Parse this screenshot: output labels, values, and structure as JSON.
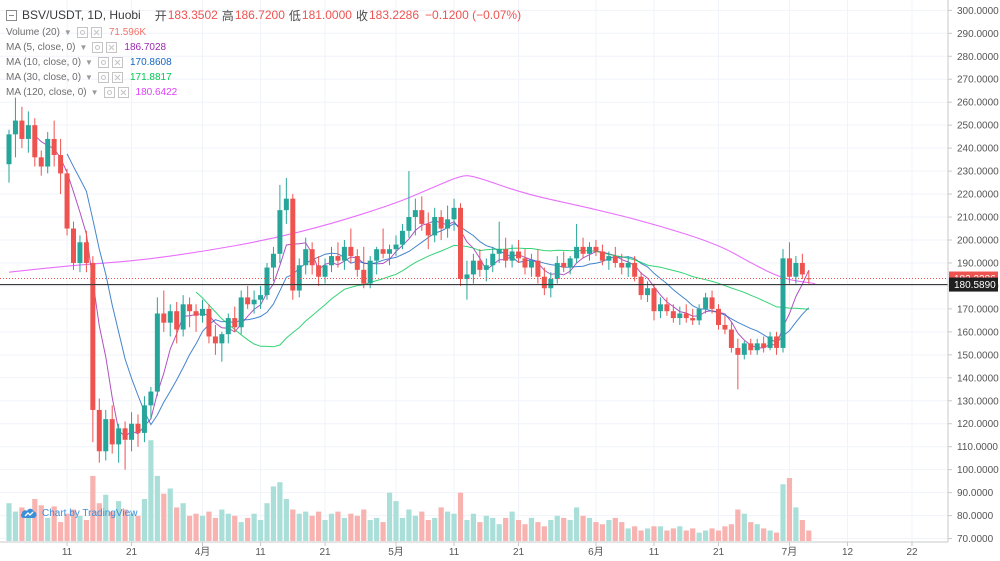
{
  "header": {
    "symbol": "BSV/USDT, 1D, Huobi",
    "open_label": "开",
    "open": "183.3502",
    "high_label": "高",
    "high": "186.7200",
    "low_label": "低",
    "low": "181.0000",
    "close_label": "收",
    "close": "183.2286",
    "change": "−0.1200 (−0.07%)"
  },
  "indicators": [
    {
      "name": "Volume (20)",
      "value": "71.596K",
      "color": "#f4726a"
    },
    {
      "name": "MA (5, close, 0)",
      "value": "186.7028",
      "color": "#9c27b0"
    },
    {
      "name": "MA (10, close, 0)",
      "value": "170.8608",
      "color": "#1565c0"
    },
    {
      "name": "MA (30, close, 0)",
      "value": "171.8817",
      "color": "#00c853"
    },
    {
      "name": "MA (120, close, 0)",
      "value": "180.6422",
      "color": "#e040fb"
    }
  ],
  "watermark": "Chart by TradingView",
  "chart_data": {
    "type": "candlestick",
    "price_axis": {
      "ticks": [
        300,
        290,
        280,
        270,
        260,
        250,
        240,
        230,
        220,
        210,
        200,
        190,
        180,
        170,
        160,
        150,
        140,
        130,
        120,
        110,
        100,
        90,
        80,
        70
      ],
      "tick_labels": [
        "300.0000",
        "290.0000",
        "280.0000",
        "270.0000",
        "260.0000",
        "250.0000",
        "240.0000",
        "230.0000",
        "220.0000",
        "210.0000",
        "200.0000",
        "190.0000",
        "180.0000",
        "170.0000",
        "160.0000",
        "150.0000",
        "140.0000",
        "130.0000",
        "120.0000",
        "110.0000",
        "100.0000",
        "90.0000",
        "80.0000",
        "70.0000"
      ],
      "range": [
        68.5,
        304.5
      ],
      "last_price_label": "183.2286",
      "reference_line_label": "180.5890"
    },
    "time_axis": {
      "labels": [
        "11",
        "21",
        "4月",
        "11",
        "21",
        "5月",
        "11",
        "21",
        "6月",
        "11",
        "21",
        "7月",
        "12",
        "22"
      ],
      "label_days": [
        9,
        19,
        30,
        39,
        49,
        60,
        69,
        79,
        91,
        100,
        110,
        121,
        130,
        140
      ]
    },
    "colors": {
      "up": "#26a69a",
      "down": "#ef5350",
      "vol_up": "#a9dfd8",
      "vol_down": "#f8b3b0"
    },
    "ohlc": [
      [
        233.0,
        248.0,
        225.0,
        246.0
      ],
      [
        246.0,
        262.0,
        236.0,
        252.0
      ],
      [
        252.0,
        258.0,
        240.0,
        244.0
      ],
      [
        244.0,
        256.0,
        238.0,
        250.0
      ],
      [
        250.0,
        253.0,
        232.0,
        236.0
      ],
      [
        236.0,
        239.0,
        228.0,
        232.0
      ],
      [
        232.0,
        247.0,
        229.0,
        244.0
      ],
      [
        244.0,
        252.0,
        232.0,
        237.0
      ],
      [
        237.0,
        244.0,
        220.0,
        229.0
      ],
      [
        229.0,
        231.0,
        202.0,
        205.0
      ],
      [
        205.0,
        208.0,
        187.0,
        190.0
      ],
      [
        190.0,
        202.0,
        186.0,
        199.0
      ],
      [
        199.0,
        204.0,
        186.0,
        190.0
      ],
      [
        190.0,
        193.0,
        112.0,
        126.0
      ],
      [
        126.0,
        131.0,
        103.0,
        108.0
      ],
      [
        108.0,
        126.0,
        104.0,
        122.0
      ],
      [
        122.0,
        128.0,
        107.0,
        111.0
      ],
      [
        111.0,
        120.0,
        103.0,
        118.0
      ],
      [
        118.0,
        121.0,
        100.0,
        113.0
      ],
      [
        113.0,
        125.0,
        108.0,
        120.0
      ],
      [
        120.0,
        124.0,
        110.0,
        116.0
      ],
      [
        116.0,
        132.0,
        112.0,
        128.0
      ],
      [
        128.0,
        136.0,
        122.0,
        134.0
      ],
      [
        134.0,
        175.0,
        132.0,
        168.0
      ],
      [
        168.0,
        178.0,
        160.0,
        164.0
      ],
      [
        164.0,
        172.0,
        158.0,
        169.0
      ],
      [
        169.0,
        173.0,
        155.0,
        161.0
      ],
      [
        161.0,
        176.0,
        158.0,
        172.0
      ],
      [
        172.0,
        175.0,
        162.0,
        169.0
      ],
      [
        169.0,
        172.0,
        160.0,
        167.0
      ],
      [
        167.0,
        174.0,
        164.0,
        170.0
      ],
      [
        170.0,
        172.0,
        155.0,
        158.0
      ],
      [
        158.0,
        163.0,
        150.0,
        155.0
      ],
      [
        155.0,
        160.0,
        147.0,
        159.0
      ],
      [
        159.0,
        168.0,
        155.0,
        166.0
      ],
      [
        166.0,
        171.0,
        160.0,
        162.0
      ],
      [
        162.0,
        178.0,
        159.0,
        175.0
      ],
      [
        175.0,
        180.0,
        170.0,
        172.0
      ],
      [
        172.0,
        178.0,
        168.0,
        174.0
      ],
      [
        174.0,
        180.0,
        170.0,
        176.0
      ],
      [
        176.0,
        190.0,
        174.0,
        188.0
      ],
      [
        188.0,
        197.0,
        182.0,
        194.0
      ],
      [
        194.0,
        224.0,
        190.0,
        213.0
      ],
      [
        213.0,
        227.0,
        207.0,
        218.0
      ],
      [
        218.0,
        220.0,
        174.0,
        178.0
      ],
      [
        178.0,
        192.0,
        175.0,
        189.0
      ],
      [
        189.0,
        201.0,
        185.0,
        196.0
      ],
      [
        196.0,
        199.0,
        185.0,
        189.0
      ],
      [
        189.0,
        193.0,
        180.0,
        184.0
      ],
      [
        184.0,
        192.0,
        181.0,
        189.0
      ],
      [
        189.0,
        197.0,
        186.0,
        193.0
      ],
      [
        193.0,
        199.0,
        188.0,
        191.0
      ],
      [
        191.0,
        200.0,
        187.0,
        197.0
      ],
      [
        197.0,
        205.0,
        190.0,
        193.0
      ],
      [
        193.0,
        196.0,
        184.0,
        187.0
      ],
      [
        187.0,
        197.0,
        179.0,
        181.0
      ],
      [
        181.0,
        193.0,
        179.0,
        191.0
      ],
      [
        191.0,
        197.0,
        185.0,
        196.0
      ],
      [
        196.0,
        205.0,
        192.0,
        194.0
      ],
      [
        194.0,
        198.0,
        189.0,
        196.0
      ],
      [
        196.0,
        202.0,
        193.0,
        198.0
      ],
      [
        198.0,
        207.0,
        196.0,
        204.0
      ],
      [
        204.0,
        230.0,
        201.0,
        210.0
      ],
      [
        210.0,
        218.0,
        202.0,
        213.0
      ],
      [
        213.0,
        219.0,
        204.0,
        207.0
      ],
      [
        207.0,
        212.0,
        196.0,
        202.0
      ],
      [
        202.0,
        214.0,
        199.0,
        210.0
      ],
      [
        210.0,
        213.0,
        200.0,
        205.0
      ],
      [
        205.0,
        215.0,
        201.0,
        209.0
      ],
      [
        209.0,
        218.0,
        204.0,
        214.0
      ],
      [
        214.0,
        216.0,
        180.0,
        183.0
      ],
      [
        183.0,
        191.0,
        174.0,
        185.0
      ],
      [
        185.0,
        194.0,
        181.0,
        191.0
      ],
      [
        191.0,
        196.0,
        184.0,
        187.0
      ],
      [
        187.0,
        192.0,
        182.0,
        189.0
      ],
      [
        189.0,
        197.0,
        186.0,
        194.0
      ],
      [
        194.0,
        208.0,
        190.0,
        196.0
      ],
      [
        196.0,
        201.0,
        188.0,
        191.0
      ],
      [
        191.0,
        198.0,
        188.0,
        195.0
      ],
      [
        195.0,
        200.0,
        190.0,
        192.0
      ],
      [
        192.0,
        196.0,
        185.0,
        188.0
      ],
      [
        188.0,
        194.0,
        184.0,
        191.0
      ],
      [
        191.0,
        196.0,
        181.0,
        184.0
      ],
      [
        184.0,
        188.0,
        176.0,
        179.0
      ],
      [
        179.0,
        186.0,
        175.0,
        183.0
      ],
      [
        183.0,
        193.0,
        181.0,
        190.0
      ],
      [
        190.0,
        195.0,
        186.0,
        188.0
      ],
      [
        188.0,
        193.0,
        185.0,
        192.0
      ],
      [
        192.0,
        207.0,
        190.0,
        197.0
      ],
      [
        197.0,
        201.0,
        192.0,
        194.0
      ],
      [
        194.0,
        199.0,
        191.0,
        197.0
      ],
      [
        197.0,
        200.0,
        193.0,
        195.0
      ],
      [
        195.0,
        198.0,
        189.0,
        191.0
      ],
      [
        191.0,
        195.0,
        187.0,
        193.0
      ],
      [
        193.0,
        197.0,
        188.0,
        190.0
      ],
      [
        190.0,
        194.0,
        185.0,
        188.0
      ],
      [
        188.0,
        193.0,
        184.0,
        190.0
      ],
      [
        190.0,
        193.0,
        182.0,
        184.0
      ],
      [
        184.0,
        186.0,
        174.0,
        176.0
      ],
      [
        176.0,
        182.0,
        173.0,
        179.0
      ],
      [
        179.0,
        181.0,
        165.0,
        169.0
      ],
      [
        169.0,
        175.0,
        166.0,
        172.0
      ],
      [
        172.0,
        175.0,
        167.0,
        169.0
      ],
      [
        169.0,
        172.0,
        164.0,
        166.0
      ],
      [
        166.0,
        171.0,
        163.0,
        168.0
      ],
      [
        168.0,
        172.0,
        164.0,
        166.0
      ],
      [
        166.0,
        170.0,
        163.0,
        165.0
      ],
      [
        165.0,
        172.0,
        163.0,
        170.0
      ],
      [
        170.0,
        177.0,
        168.0,
        175.0
      ],
      [
        175.0,
        178.0,
        168.0,
        170.0
      ],
      [
        170.0,
        172.0,
        161.0,
        163.0
      ],
      [
        163.0,
        167.0,
        159.0,
        161.0
      ],
      [
        161.0,
        164.0,
        151.0,
        153.0
      ],
      [
        153.0,
        157.0,
        135.0,
        150.0
      ],
      [
        150.0,
        156.0,
        148.0,
        155.0
      ],
      [
        155.0,
        157.0,
        150.0,
        152.0
      ],
      [
        152.0,
        157.0,
        150.0,
        155.0
      ],
      [
        155.0,
        158.0,
        151.0,
        153.0
      ],
      [
        153.0,
        160.0,
        152.0,
        158.0
      ],
      [
        158.0,
        160.0,
        150.0,
        153.0
      ],
      [
        153.0,
        196.0,
        151.0,
        192.0
      ],
      [
        192.0,
        199.0,
        181.0,
        184.0
      ],
      [
        184.0,
        193.0,
        181.0,
        190.0
      ],
      [
        190.0,
        194.0,
        183.0,
        185.0
      ],
      [
        183.35,
        186.72,
        181.0,
        183.23
      ]
    ],
    "volume_k": [
      36,
      28,
      32,
      22,
      40,
      34,
      22,
      33,
      18,
      26,
      30,
      24,
      20,
      62,
      36,
      44,
      28,
      38,
      30,
      26,
      24,
      40,
      96,
      62,
      45,
      50,
      32,
      36,
      24,
      26,
      24,
      28,
      22,
      30,
      26,
      24,
      18,
      22,
      26,
      20,
      36,
      52,
      56,
      40,
      30,
      26,
      28,
      24,
      28,
      20,
      26,
      28,
      22,
      26,
      24,
      30,
      20,
      22,
      18,
      46,
      38,
      22,
      30,
      24,
      28,
      20,
      22,
      32,
      28,
      26,
      46,
      20,
      26,
      18,
      24,
      22,
      16,
      22,
      28,
      20,
      16,
      22,
      18,
      14,
      20,
      24,
      22,
      20,
      32,
      24,
      22,
      18,
      16,
      20,
      22,
      18,
      12,
      14,
      10,
      12,
      14,
      14,
      10,
      12,
      14,
      10,
      12,
      8,
      10,
      12,
      10,
      14,
      16,
      30,
      26,
      18,
      16,
      12,
      10,
      8,
      54,
      60,
      32,
      20,
      10
    ],
    "ma_series": [
      {
        "name": "MA (5, close, 0)",
        "period": 5,
        "color": "#9c27b0"
      },
      {
        "name": "MA (10, close, 0)",
        "period": 10,
        "color": "#1565c0"
      },
      {
        "name": "MA (30, close, 0)",
        "period": 30,
        "color": "#00c853"
      }
    ],
    "ma120_curve": {
      "name": "MA (120, close, 0)",
      "color": "#e040fb",
      "points": [
        [
          0,
          186
        ],
        [
          10,
          189
        ],
        [
          20,
          191
        ],
        [
          30,
          195
        ],
        [
          40,
          200
        ],
        [
          50,
          207
        ],
        [
          60,
          216
        ],
        [
          65,
          222
        ],
        [
          70,
          228
        ],
        [
          72,
          228
        ],
        [
          80,
          220
        ],
        [
          90,
          214
        ],
        [
          100,
          207
        ],
        [
          110,
          198
        ],
        [
          115,
          190
        ],
        [
          120,
          183
        ],
        [
          125,
          181
        ]
      ]
    }
  }
}
